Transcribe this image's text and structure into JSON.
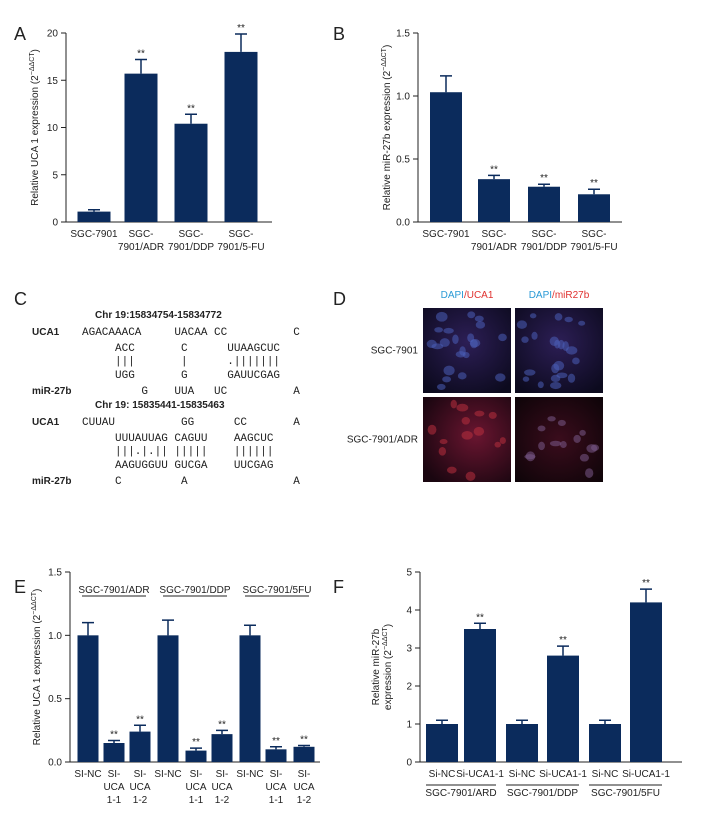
{
  "panel_labels": [
    "A",
    "B",
    "C",
    "D",
    "E",
    "F"
  ],
  "chart_data": [
    {
      "type": "bar",
      "ylabel": [
        "Relative UCA 1 expression (2"
      ],
      "ylabel_sup": "−ΔΔCT",
      "ylabel_end": ")",
      "categories": [
        [
          "SGC-7901"
        ],
        [
          "SGC-",
          "7901/ADR"
        ],
        [
          "SGC-",
          "7901/DDP"
        ],
        [
          "SGC-",
          "7901/5-FU"
        ]
      ],
      "values": [
        1.1,
        15.7,
        10.4,
        18.0
      ],
      "errors": [
        0.2,
        1.5,
        1.0,
        1.9
      ],
      "sig_labels": [
        null,
        "**",
        "**",
        "**"
      ],
      "color": "#0b2b5c",
      "ylim": [
        0,
        20
      ],
      "yticks": [
        0,
        5,
        10,
        15,
        20
      ]
    },
    {
      "type": "bar",
      "ylabel": [
        "Relative miR-27b expression (2"
      ],
      "ylabel_sup": "−ΔΔCT",
      "ylabel_end": ")",
      "categories": [
        [
          "SGC-7901"
        ],
        [
          "SGC-",
          "7901/ADR"
        ],
        [
          "SGC-",
          "7901/DDP"
        ],
        [
          "SGC-",
          "7901/5-FU"
        ]
      ],
      "values": [
        1.03,
        0.34,
        0.28,
        0.22
      ],
      "errors": [
        0.13,
        0.03,
        0.02,
        0.04
      ],
      "sig_labels": [
        null,
        "**",
        "**",
        "**"
      ],
      "color": "#0b2b5c",
      "ylim": [
        0,
        1.5
      ],
      "yticks": [
        {
          "value": 0,
          "label": "0.0"
        },
        {
          "value": 0.5,
          "label": "0.5"
        },
        {
          "value": 1,
          "label": "1.0"
        },
        {
          "value": 1.5,
          "label": "1.5"
        }
      ]
    },
    {
      "type": "bar",
      "ylabel": [
        "Relative UCA 1 expression (2"
      ],
      "ylabel_sup": "−ΔΔCT",
      "ylabel_end": ")",
      "categories": [
        [
          "SI-NC"
        ],
        [
          "SI-",
          "UCA",
          "1-1"
        ],
        [
          "SI-",
          "UCA",
          "1-2"
        ],
        [
          "SI-NC"
        ],
        [
          "SI-",
          "UCA",
          "1-1"
        ],
        [
          "SI-",
          "UCA",
          "1-2"
        ],
        [
          "SI-NC"
        ],
        [
          "SI-",
          "UCA",
          "1-1"
        ],
        [
          "SI-",
          "UCA",
          "1-2"
        ]
      ],
      "values": [
        1.0,
        0.15,
        0.24,
        1.0,
        0.09,
        0.22,
        1.0,
        0.1,
        0.12
      ],
      "errors": [
        0.1,
        0.02,
        0.05,
        0.12,
        0.02,
        0.03,
        0.08,
        0.02,
        0.01
      ],
      "sig_labels": [
        null,
        "**",
        "**",
        null,
        "**",
        "**",
        null,
        "**",
        "**"
      ],
      "color": "#0b2b5c",
      "group_labels": [
        "SGC-7901/ADR",
        "SGC-7901/DDP",
        "SGC-7901/5FU"
      ],
      "ylim": [
        0,
        1.5
      ],
      "yticks": [
        {
          "value": 0,
          "label": "0.0"
        },
        {
          "value": 0.5,
          "label": "0.5"
        },
        {
          "value": 1,
          "label": "1.0"
        },
        {
          "value": 1.5,
          "label": "1.5"
        }
      ]
    },
    {
      "type": "bar",
      "ylabel": [
        "Relative miR-27b",
        "expression (2"
      ],
      "ylabel_sup": "−ΔΔCT",
      "ylabel_end": ")",
      "categories": [
        [
          "Si-NC"
        ],
        [
          "Si-UCA1-1"
        ],
        [
          "Si-NC"
        ],
        [
          "Si-UCA1-1"
        ],
        [
          "Si-NC"
        ],
        [
          "Si-UCA1-1"
        ]
      ],
      "values": [
        1.0,
        3.5,
        1.0,
        2.8,
        1.0,
        4.2
      ],
      "errors": [
        0.1,
        0.15,
        0.1,
        0.25,
        0.1,
        0.35
      ],
      "sig_labels": [
        null,
        "**",
        null,
        "**",
        null,
        "**"
      ],
      "color": "#0b2b5c",
      "group_labels": [
        "SGC-7901/ARD",
        "SGC-7901/DDP",
        "SGC-7901/5FU"
      ],
      "ylim": [
        0,
        5
      ],
      "yticks": [
        0,
        1,
        2,
        3,
        4,
        5
      ]
    }
  ],
  "sequence_panel": {
    "blocks": [
      {
        "header": "Chr 19:15834754-15834772",
        "rows": [
          {
            "label": "UCA1",
            "text": "AGACAAACA     UACAA CC          C",
            "color": "#e0312f"
          },
          {
            "text": "     ACC       C      UUAAGCUC",
            "color": "#2b4c9b"
          },
          {
            "text": "     |||       |      .|||||||",
            "color": "#2b4c9b"
          },
          {
            "text": "     UGG       G      GAUUCGAG",
            "color": "#2b4c9b"
          },
          {
            "label": "miR-27b",
            "text": "         G    UUA   UC          A",
            "color": "#e0312f"
          }
        ]
      },
      {
        "header": "Chr 19: 15835441-15835463",
        "rows": [
          {
            "label": "UCA1",
            "text": "CUUAU          GG      CC       A",
            "color": "#e0312f"
          },
          {
            "text": "     UUUAUUAG CAGUU    AAGCUC",
            "color": "#2b4c9b"
          },
          {
            "text": "     |||.|.|| |||||    ||||||",
            "color": "#2b4c9b"
          },
          {
            "text": "     AAGUGGUU GUCGA    UUCGAG",
            "color": "#2b4c9b"
          },
          {
            "label": "miR-27b",
            "text": "     C         A                A",
            "color": "#e0312f"
          }
        ]
      }
    ]
  },
  "image_panel": {
    "columns": [
      [
        "DAPI",
        "/UCA1"
      ],
      [
        "DAPI",
        "/miR27b"
      ]
    ],
    "rows": [
      "SGC-7901",
      "SGC-7901/ADR"
    ]
  }
}
